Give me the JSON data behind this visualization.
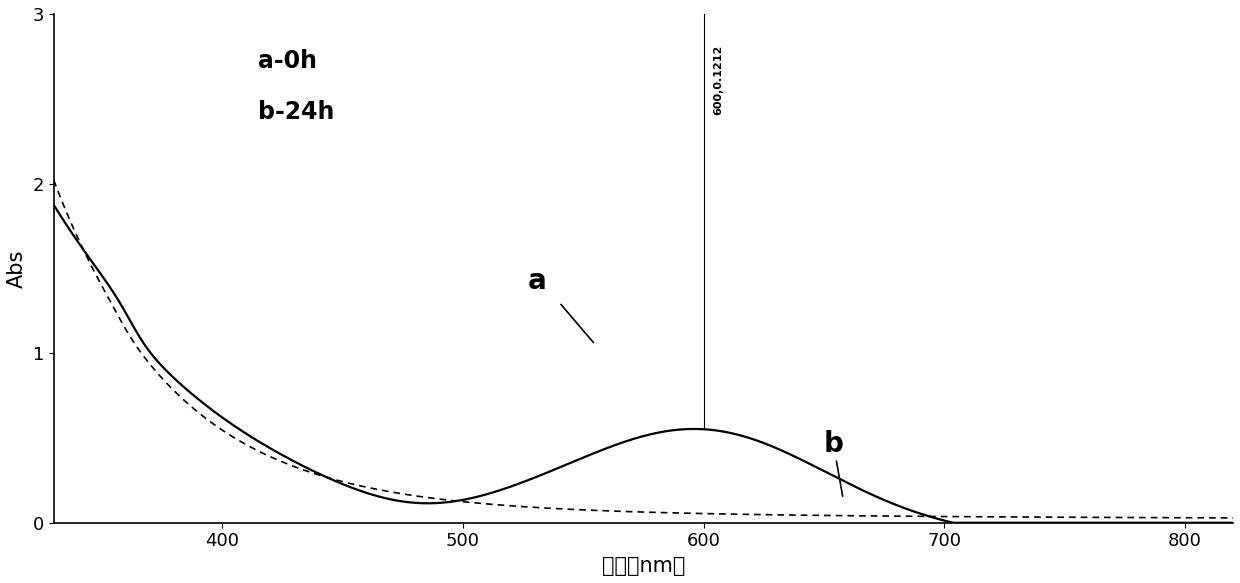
{
  "xlabel": "波长（nm）",
  "ylabel": "Abs",
  "xlim": [
    330,
    820
  ],
  "ylim": [
    0,
    3.0
  ],
  "yticks": [
    0,
    1,
    2,
    3
  ],
  "xticks": [
    400,
    500,
    600,
    700,
    800
  ],
  "legend_a": "a-0h",
  "legend_b": "b-24h",
  "peak_annotation_line1": "600,0.1212",
  "peak_x": 600,
  "background_color": "#ffffff",
  "line_color": "#000000",
  "annotation_fontsize": 8,
  "label_fontsize": 15,
  "tick_fontsize": 13,
  "legend_fontsize": 17,
  "curve_label_fontsize": 20
}
